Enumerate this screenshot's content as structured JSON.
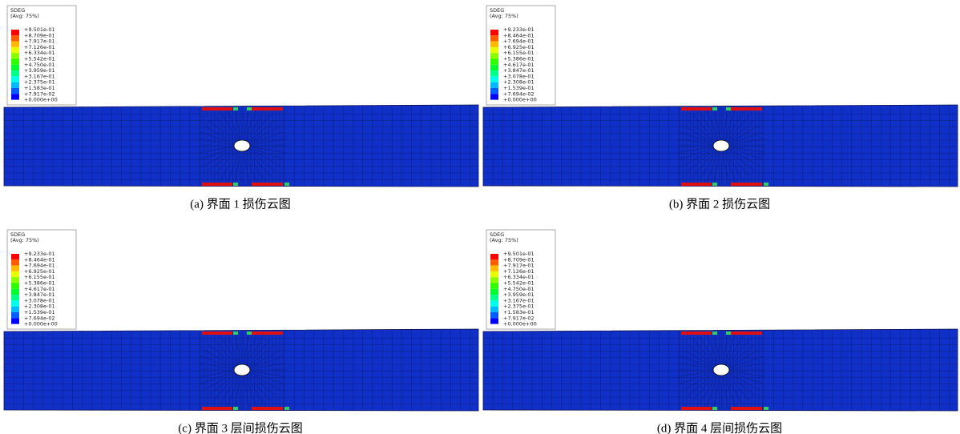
{
  "panels": [
    {
      "legend_title": "SDEG",
      "legend_subtitle": "(Avg: 75%)",
      "legend_values": [
        "+9.501e-01",
        "+8.709e-01",
        "+7.917e-01",
        "+7.126e-01",
        "+6.334e-01",
        "+5.542e-01",
        "+4.750e-01",
        "+3.959e-01",
        "+3.167e-01",
        "+2.375e-01",
        "+1.583e-01",
        "+7.917e-02",
        "+0.000e+00"
      ],
      "caption": "(a)  界面 1 损伤云图"
    },
    {
      "legend_title": "SDEG",
      "legend_subtitle": "(Avg: 75%)",
      "legend_values": [
        "+9.233e-01",
        "+8.464e-01",
        "+7.694e-01",
        "+6.925e-01",
        "+6.155e-01",
        "+5.386e-01",
        "+4.617e-01",
        "+3.847e-01",
        "+3.078e-01",
        "+2.308e-01",
        "+1.539e-01",
        "+7.694e-02",
        "+0.000e+00"
      ],
      "caption": "(b)  界面 2 损伤云图"
    },
    {
      "legend_title": "SDEG",
      "legend_subtitle": "(Avg: 75%)",
      "legend_values": [
        "+9.233e-01",
        "+8.464e-01",
        "+7.694e-01",
        "+6.925e-01",
        "+6.155e-01",
        "+5.386e-01",
        "+4.617e-01",
        "+3.847e-01",
        "+3.078e-01",
        "+2.308e-01",
        "+1.539e-01",
        "+7.694e-02",
        "+0.000e+00"
      ],
      "caption": "(c)  界面 3 层间损伤云图"
    },
    {
      "legend_title": "SDEG",
      "legend_subtitle": "(Avg: 75%)",
      "legend_values": [
        "+9.501e-01",
        "+8.709e-01",
        "+7.917e-01",
        "+7.126e-01",
        "+6.334e-01",
        "+5.542e-01",
        "+4.750e-01",
        "+3.959e-01",
        "+3.167e-01",
        "+2.375e-01",
        "+1.583e-01",
        "+7.917e-02",
        "+0.000e+00"
      ],
      "caption": "(d)  界面 4 层间损伤云图"
    }
  ]
}
